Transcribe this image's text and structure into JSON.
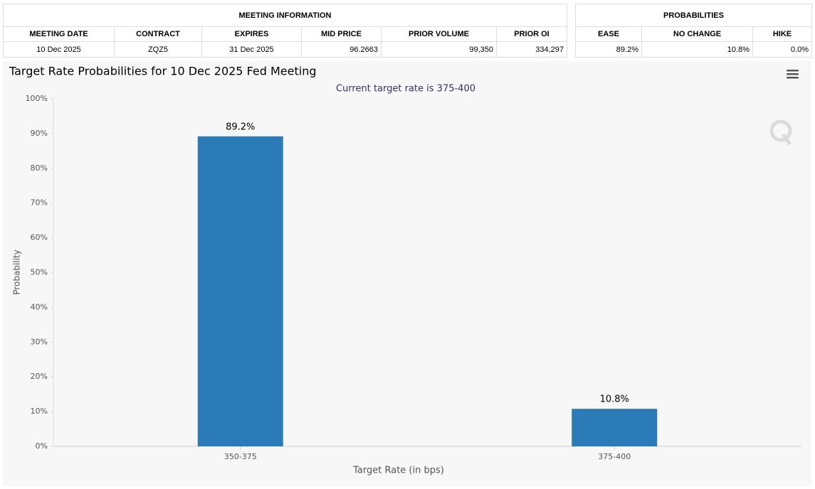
{
  "meeting_table": {
    "title": "MEETING INFORMATION",
    "headers": [
      "MEETING DATE",
      "CONTRACT",
      "EXPIRES",
      "MID PRICE",
      "PRIOR VOLUME",
      "PRIOR OI"
    ],
    "rows": [
      [
        "10 Dec 2025",
        "ZQZ5",
        "31 Dec 2025",
        "96.2663",
        "99,350",
        "334,297"
      ]
    ]
  },
  "probabilities_table": {
    "title": "PROBABILITIES",
    "headers": [
      "EASE",
      "NO CHANGE",
      "HIKE"
    ],
    "rows": [
      [
        "89.2%",
        "10.8%",
        "0.0%"
      ]
    ]
  },
  "chart_data": {
    "type": "bar",
    "title": "Target Rate Probabilities for 10 Dec 2025 Fed Meeting",
    "subtitle": "Current target rate is 375-400",
    "x_label": "Target Rate (in bps)",
    "y_label": "Probability",
    "categories": [
      "350-375",
      "375-400"
    ],
    "values": [
      89.2,
      10.8
    ],
    "value_labels": [
      "89.2%",
      "10.8%"
    ],
    "color": "#2b7bb9",
    "ylim": [
      0,
      100
    ],
    "yticks": [
      {
        "value": 0,
        "label": "0%"
      },
      {
        "value": 10,
        "label": "10%"
      },
      {
        "value": 20,
        "label": "20%"
      },
      {
        "value": 30,
        "label": "30%"
      },
      {
        "value": 40,
        "label": "40%"
      },
      {
        "value": 50,
        "label": "50%"
      },
      {
        "value": 60,
        "label": "60%"
      },
      {
        "value": 70,
        "label": "70%"
      },
      {
        "value": 80,
        "label": "80%"
      },
      {
        "value": 90,
        "label": "90%"
      },
      {
        "value": 100,
        "label": "100%"
      }
    ],
    "grid": false
  }
}
